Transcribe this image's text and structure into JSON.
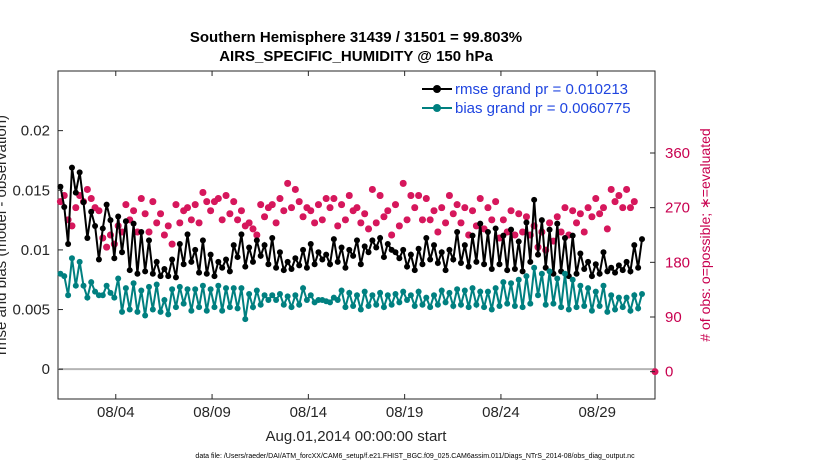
{
  "chart_data": {
    "type": "line",
    "title_line1": "Southern Hemisphere 31439 / 31501 = 99.803%",
    "title_line2": "AIRS_SPECIFIC_HUMIDITY @ 150 hPa",
    "xlabel": "Aug.01,2014 00:00:00 start",
    "ylabel": "rmse and bias (model - observation)",
    "ylabel_right": "# of obs: o=possible; ∗=evaluated",
    "footnote": "data file: /Users/raeder/DAI/ATM_forcXX/CAM6_setup/f.e21.FHIST_BGC.f09_025.CAM6assim.011/Diags_NTrS_2014-08/obs_diag_output.nc",
    "x_tick_labels": [
      "08/04",
      "08/09",
      "08/14",
      "08/19",
      "08/24",
      "08/29"
    ],
    "x_tick_days": [
      4,
      9,
      14,
      19,
      24,
      29
    ],
    "xlim_days": [
      1,
      32
    ],
    "ylim": [
      -0.0025,
      0.025
    ],
    "y_ticks": [
      0,
      0.005,
      0.01,
      0.015,
      0.02
    ],
    "y_tick_labels": [
      "0",
      "0.005",
      "0.01",
      "0.015",
      "0.02"
    ],
    "y2lim": [
      -45,
      495
    ],
    "y2_ticks": [
      0,
      90,
      180,
      270,
      360
    ],
    "y2_tick_labels": [
      "0",
      "90",
      "180",
      "270",
      "360"
    ],
    "series": [
      {
        "name": "rmse grand pr = 0.010213",
        "color": "#000000",
        "values": [
          0.0153,
          0.0136,
          0.0105,
          0.0169,
          0.0148,
          0.0165,
          0.014,
          0.011,
          0.0132,
          0.012,
          0.0092,
          0.0118,
          0.0138,
          0.0125,
          0.0093,
          0.0128,
          0.0098,
          0.0124,
          0.0083,
          0.0122,
          0.008,
          0.0115,
          0.0082,
          0.0108,
          0.008,
          0.009,
          0.0078,
          0.0084,
          0.0078,
          0.0092,
          0.0077,
          0.0105,
          0.0088,
          0.0113,
          0.009,
          0.01,
          0.0081,
          0.0108,
          0.008,
          0.0096,
          0.0078,
          0.009,
          0.0085,
          0.0092,
          0.0082,
          0.0104,
          0.0094,
          0.0113,
          0.0086,
          0.0102,
          0.009,
          0.0108,
          0.0095,
          0.0104,
          0.0088,
          0.011,
          0.0085,
          0.0098,
          0.0083,
          0.009,
          0.0084,
          0.0093,
          0.0087,
          0.01,
          0.0085,
          0.0105,
          0.0088,
          0.0098,
          0.0092,
          0.0096,
          0.0088,
          0.0109,
          0.009,
          0.0102,
          0.0085,
          0.01,
          0.0095,
          0.0108,
          0.0088,
          0.0103,
          0.0098,
          0.0108,
          0.0102,
          0.011,
          0.0094,
          0.0105,
          0.01,
          0.0098,
          0.0093,
          0.01,
          0.0086,
          0.0096,
          0.0083,
          0.0101,
          0.0088,
          0.011,
          0.0092,
          0.0104,
          0.0089,
          0.0098,
          0.0083,
          0.01,
          0.0092,
          0.0115,
          0.0089,
          0.0104,
          0.0086,
          0.0112,
          0.009,
          0.0122,
          0.0088,
          0.0115,
          0.0084,
          0.0118,
          0.0088,
          0.0112,
          0.0083,
          0.0117,
          0.0084,
          0.0107,
          0.0082,
          0.0123,
          0.009,
          0.0142,
          0.0096,
          0.0125,
          0.0085,
          0.0117,
          0.008,
          0.0122,
          0.0082,
          0.011,
          0.0078,
          0.0112,
          0.008,
          0.0097,
          0.0084,
          0.009,
          0.0078,
          0.0088,
          0.008,
          0.0098,
          0.0082,
          0.0085,
          0.0081,
          0.0087,
          0.0083,
          0.009,
          0.0082,
          0.0104,
          0.0085,
          0.0109
        ]
      },
      {
        "name": "bias grand pr = 0.0060775",
        "color": "#008080",
        "values": [
          0.008,
          0.0078,
          0.0062,
          0.0093,
          0.007,
          0.009,
          0.007,
          0.006,
          0.0073,
          0.0065,
          0.0062,
          0.0062,
          0.007,
          0.0064,
          0.006,
          0.0076,
          0.0048,
          0.0068,
          0.005,
          0.0072,
          0.0048,
          0.0066,
          0.0045,
          0.0069,
          0.005,
          0.0071,
          0.0048,
          0.0058,
          0.0046,
          0.0067,
          0.0052,
          0.0069,
          0.0055,
          0.0067,
          0.0049,
          0.0067,
          0.0052,
          0.007,
          0.0049,
          0.0067,
          0.0052,
          0.007,
          0.0049,
          0.0068,
          0.0052,
          0.0068,
          0.0051,
          0.0068,
          0.0042,
          0.0063,
          0.0052,
          0.0066,
          0.0054,
          0.0062,
          0.0058,
          0.0062,
          0.0058,
          0.0063,
          0.0054,
          0.0061,
          0.0052,
          0.0062,
          0.0054,
          0.0068,
          0.0058,
          0.0062,
          0.0056,
          0.0058,
          0.0058,
          0.0057,
          0.0056,
          0.006,
          0.0058,
          0.0066,
          0.0052,
          0.0064,
          0.0053,
          0.0062,
          0.005,
          0.0065,
          0.0053,
          0.0062,
          0.0054,
          0.0064,
          0.0052,
          0.0062,
          0.0054,
          0.0063,
          0.0056,
          0.0065,
          0.0058,
          0.0062,
          0.0053,
          0.0065,
          0.0054,
          0.006,
          0.0052,
          0.0062,
          0.0054,
          0.0066,
          0.0056,
          0.0064,
          0.0053,
          0.0067,
          0.0054,
          0.0066,
          0.0052,
          0.0068,
          0.0054,
          0.0065,
          0.0052,
          0.0065,
          0.005,
          0.0068,
          0.0053,
          0.0073,
          0.0055,
          0.0072,
          0.0053,
          0.0075,
          0.0052,
          0.0078,
          0.0055,
          0.0085,
          0.0062,
          0.008,
          0.0054,
          0.0082,
          0.0055,
          0.0076,
          0.0052,
          0.008,
          0.005,
          0.0075,
          0.0052,
          0.007,
          0.0053,
          0.0068,
          0.0049,
          0.0065,
          0.0053,
          0.007,
          0.0048,
          0.0062,
          0.005,
          0.006,
          0.0052,
          0.006,
          0.0049,
          0.0062,
          0.0051,
          0.0063
        ]
      }
    ],
    "obs_evaluated": [
      280,
      290,
      250,
      240,
      270,
      290,
      280,
      300,
      285,
      270,
      265,
      220,
      205,
      225,
      210,
      240,
      230,
      275,
      250,
      265,
      230,
      285,
      260,
      230,
      280,
      245,
      260,
      225,
      240,
      210,
      275,
      245,
      265,
      270,
      250,
      275,
      245,
      295,
      280,
      265,
      280,
      285,
      250,
      290,
      260,
      280,
      250,
      265,
      240,
      245,
      235,
      225,
      275,
      255,
      270,
      275,
      245,
      285,
      265,
      310,
      270,
      300,
      280,
      255,
      270,
      265,
      245,
      275,
      250,
      285,
      270,
      285,
      240,
      275,
      250,
      290,
      265,
      270,
      245,
      260,
      235,
      300,
      245,
      290,
      255,
      265,
      225,
      275,
      240,
      310,
      250,
      290,
      270,
      290,
      250,
      285,
      250,
      265,
      230,
      270,
      245,
      290,
      260,
      275,
      245,
      270,
      225,
      265,
      240,
      285,
      235,
      270,
      250,
      280,
      220,
      250,
      230,
      265,
      225,
      260,
      230,
      255,
      225,
      240,
      205,
      230,
      200,
      245,
      215,
      255,
      230,
      270,
      225,
      265,
      245,
      260,
      230,
      270,
      255,
      285,
      260,
      270,
      235,
      300,
      280,
      290,
      270,
      300,
      270,
      280
    ],
    "obs_possible": [
      280,
      290,
      250,
      240,
      270,
      290,
      280,
      300,
      285,
      270,
      265,
      220,
      205,
      225,
      210,
      240,
      230,
      275,
      250,
      265,
      230,
      285,
      260,
      230,
      280,
      245,
      260,
      225,
      240,
      210,
      275,
      245,
      265,
      270,
      250,
      275,
      245,
      295,
      280,
      265,
      280,
      285,
      250,
      290,
      260,
      280,
      250,
      265,
      240,
      245,
      235,
      225,
      275,
      255,
      270,
      275,
      245,
      285,
      265,
      310,
      270,
      300,
      280,
      255,
      270,
      265,
      245,
      275,
      250,
      285,
      270,
      285,
      240,
      275,
      250,
      290,
      265,
      270,
      245,
      260,
      235,
      300,
      245,
      290,
      255,
      265,
      225,
      275,
      240,
      310,
      250,
      290,
      270,
      290,
      250,
      285,
      250,
      265,
      230,
      270,
      245,
      290,
      260,
      275,
      245,
      270,
      225,
      265,
      240,
      285,
      235,
      270,
      250,
      280,
      220,
      250,
      230,
      265,
      225,
      260,
      230,
      255,
      225,
      240,
      205,
      230,
      200,
      245,
      215,
      255,
      230,
      270,
      225,
      265,
      245,
      260,
      230,
      270,
      255,
      285,
      260,
      270,
      235,
      300,
      280,
      290,
      270,
      300,
      270,
      280
    ],
    "obs_zero_marker_value": 0
  },
  "colors": {
    "rmse": "#000000",
    "bias": "#008080",
    "obs": "#d6175c",
    "obs_axis": "#c8004f",
    "legend_text": "#1f45e0",
    "zero_line": "#b4b4b4"
  }
}
